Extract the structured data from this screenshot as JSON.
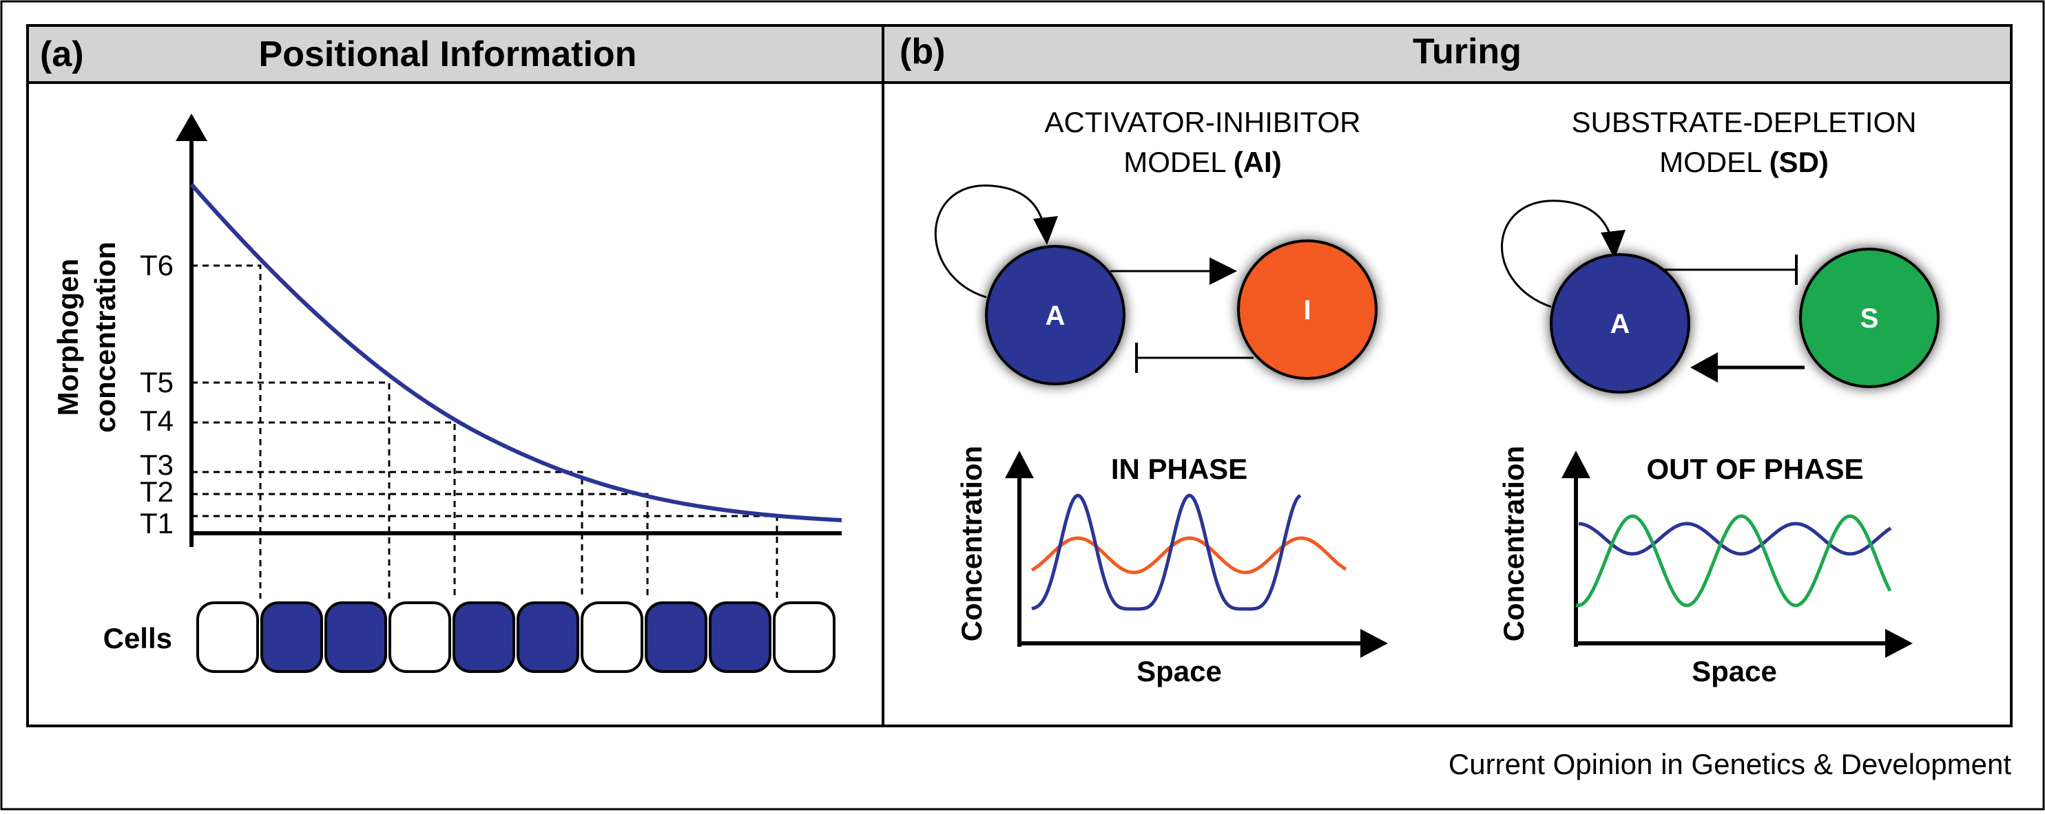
{
  "panel_a": {
    "letter": "(a)",
    "title": "Positional Information",
    "y_axis_label_line1": "Morphogen",
    "y_axis_label_line2": "concentration",
    "thresholds": [
      "T6",
      "T5",
      "T4",
      "T3",
      "T2",
      "T1"
    ],
    "cells_label": "Cells",
    "cells": [
      "white",
      "blue",
      "blue",
      "white",
      "blue",
      "blue",
      "white",
      "blue",
      "blue",
      "white"
    ]
  },
  "panel_b": {
    "letter": "(b)",
    "title": "Turing",
    "ai": {
      "title_line1": "ACTIVATOR-INHIBITOR",
      "title_line2_prefix": "MODEL ",
      "title_line2_bold": "(AI)",
      "node_activator": "A",
      "node_inhibitor": "I",
      "plot_title": "IN PHASE",
      "xlabel": "Space",
      "ylabel": "Concentration"
    },
    "sd": {
      "title_line1": "SUBSTRATE-DEPLETION",
      "title_line2_prefix": "MODEL ",
      "title_line2_bold": "(SD)",
      "node_activator": "A",
      "node_substrate": "S",
      "plot_title": "OUT OF PHASE",
      "xlabel": "Space",
      "ylabel": "Concentration"
    }
  },
  "colors": {
    "activator_blue": "#2b3594",
    "inhibitor_orange": "#f25a22",
    "substrate_green": "#1fa84f",
    "header_gray": "#d3d3d3"
  },
  "footer": "Current Opinion in Genetics & Development"
}
